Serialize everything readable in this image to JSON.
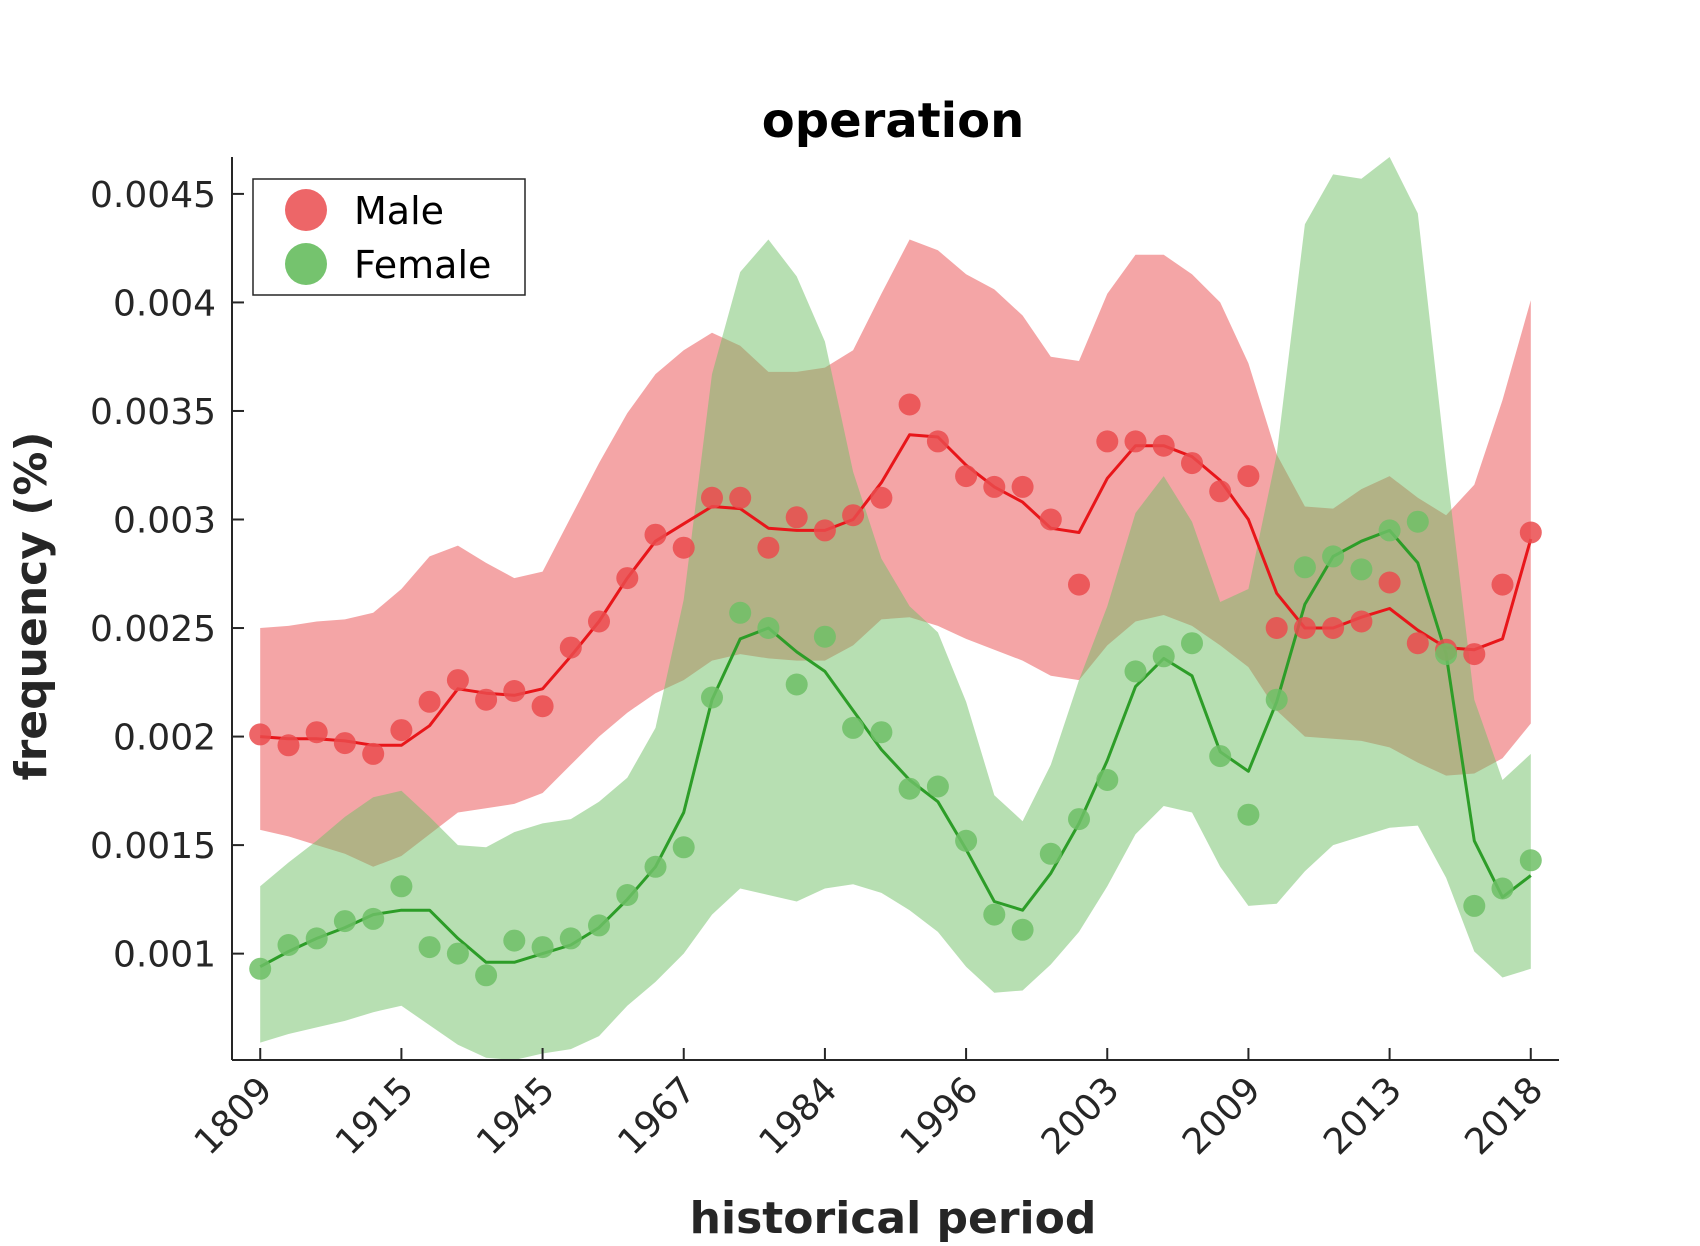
{
  "chart_data": {
    "type": "line",
    "title": "operation",
    "xlabel": "historical period",
    "ylabel": "frequency (%)",
    "categories": [
      "1809",
      "1915",
      "1945",
      "1967",
      "1984",
      "1996",
      "2003",
      "2009",
      "2013",
      "2018"
    ],
    "category_positions": [
      0,
      5,
      10,
      15,
      20,
      25,
      30,
      35,
      40,
      45
    ],
    "x_index_range": [
      -1,
      46
    ],
    "ylim": [
      0.00051,
      0.00467
    ],
    "yticks": [
      0.001,
      0.0015,
      0.002,
      0.0025,
      0.003,
      0.0035,
      0.004,
      0.0045
    ],
    "ytick_labels": [
      "0.001",
      "0.0015",
      "0.002",
      "0.0025",
      "0.003",
      "0.0035",
      "0.004",
      "0.0045"
    ],
    "legend_position": "top-left",
    "colors": {
      "male": "#e8161a",
      "female": "#2d9d28",
      "male_band": "#ea4b4e",
      "female_band": "#6fc066"
    },
    "series": [
      {
        "name": "Male",
        "key": "male",
        "points": [
          0.00201,
          0.00196,
          0.00202,
          0.00197,
          0.00192,
          0.00203,
          0.00216,
          0.00226,
          0.00217,
          0.00221,
          0.00214,
          0.00241,
          0.00253,
          0.00273,
          0.00293,
          0.00287,
          0.0031,
          0.0031,
          0.00287,
          0.00301,
          0.00295,
          0.00302,
          0.0031,
          0.00353,
          0.00336,
          0.0032,
          0.00315,
          0.00315,
          0.003,
          0.0027,
          0.00336,
          0.00336,
          0.00334,
          0.00326,
          0.00313,
          0.0032,
          0.0025,
          0.0025,
          0.0025,
          0.00253,
          0.00271,
          0.00243,
          0.0024,
          0.00238,
          0.0027,
          0.00294
        ],
        "trend": [
          0.002,
          0.00199,
          0.00199,
          0.00198,
          0.00196,
          0.00196,
          0.00205,
          0.00222,
          0.0022,
          0.00219,
          0.00222,
          0.00237,
          0.00253,
          0.00273,
          0.0029,
          0.00298,
          0.00306,
          0.00305,
          0.00296,
          0.00295,
          0.00295,
          0.003,
          0.00317,
          0.00339,
          0.00338,
          0.00325,
          0.00315,
          0.00308,
          0.00296,
          0.00294,
          0.00319,
          0.00334,
          0.00334,
          0.00329,
          0.00318,
          0.003,
          0.00266,
          0.0025,
          0.0025,
          0.00255,
          0.00259,
          0.00249,
          0.00241,
          0.0024,
          0.00245,
          0.00291
        ],
        "band_upper": [
          0.0025,
          0.00251,
          0.00253,
          0.00254,
          0.00257,
          0.00268,
          0.00283,
          0.00288,
          0.0028,
          0.00273,
          0.00276,
          0.00301,
          0.00326,
          0.00349,
          0.00367,
          0.00378,
          0.00386,
          0.0038,
          0.00368,
          0.00368,
          0.0037,
          0.00378,
          0.00404,
          0.00429,
          0.00424,
          0.00413,
          0.00406,
          0.00394,
          0.00375,
          0.00373,
          0.00404,
          0.00422,
          0.00422,
          0.00413,
          0.004,
          0.00372,
          0.0033,
          0.00306,
          0.00305,
          0.00314,
          0.0032,
          0.0031,
          0.00302,
          0.00316,
          0.00355,
          0.00401
        ],
        "band_lower": [
          0.00157,
          0.00154,
          0.0015,
          0.00146,
          0.0014,
          0.00145,
          0.00155,
          0.00165,
          0.00167,
          0.00169,
          0.00174,
          0.00187,
          0.002,
          0.00211,
          0.0022,
          0.00226,
          0.00235,
          0.00238,
          0.00236,
          0.00235,
          0.00235,
          0.00242,
          0.00254,
          0.00255,
          0.00251,
          0.00245,
          0.0024,
          0.00235,
          0.00228,
          0.00226,
          0.00242,
          0.00253,
          0.00256,
          0.00251,
          0.00242,
          0.00232,
          0.00212,
          0.002,
          0.00199,
          0.00198,
          0.00195,
          0.00188,
          0.00182,
          0.00183,
          0.0019,
          0.00206
        ]
      },
      {
        "name": "Female",
        "key": "female",
        "points": [
          0.00093,
          0.00104,
          0.00107,
          0.00115,
          0.00116,
          0.00131,
          0.00103,
          0.001,
          0.0009,
          0.00106,
          0.00103,
          0.00107,
          0.00113,
          0.00127,
          0.0014,
          0.00149,
          0.00218,
          0.00257,
          0.0025,
          0.00224,
          0.00246,
          0.00204,
          0.00202,
          0.00176,
          0.00177,
          0.00152,
          0.00118,
          0.00111,
          0.00146,
          0.00162,
          0.0018,
          0.0023,
          0.00237,
          0.00243,
          0.00191,
          0.00164,
          0.00217,
          0.00278,
          0.00283,
          0.00277,
          0.00295,
          0.00299,
          0.00238,
          0.00122,
          0.0013,
          0.00143
        ],
        "trend": [
          0.00094,
          0.00101,
          0.00107,
          0.00112,
          0.00118,
          0.0012,
          0.0012,
          0.00107,
          0.00096,
          0.00096,
          0.001,
          0.00104,
          0.00112,
          0.00125,
          0.0014,
          0.00165,
          0.00217,
          0.00245,
          0.0025,
          0.00239,
          0.0023,
          0.00212,
          0.00194,
          0.0018,
          0.0017,
          0.00148,
          0.00124,
          0.0012,
          0.00137,
          0.0016,
          0.00189,
          0.00223,
          0.00236,
          0.00228,
          0.00193,
          0.00184,
          0.00216,
          0.00261,
          0.00283,
          0.0029,
          0.00295,
          0.0028,
          0.00238,
          0.00152,
          0.00126,
          0.00136
        ],
        "band_upper": [
          0.00131,
          0.00142,
          0.00152,
          0.00163,
          0.00172,
          0.00175,
          0.00163,
          0.0015,
          0.00149,
          0.00156,
          0.0016,
          0.00162,
          0.0017,
          0.00181,
          0.00204,
          0.00263,
          0.00367,
          0.00414,
          0.00429,
          0.00412,
          0.00382,
          0.00322,
          0.00282,
          0.0026,
          0.00248,
          0.00216,
          0.00173,
          0.00161,
          0.00187,
          0.00226,
          0.0026,
          0.00303,
          0.0032,
          0.00299,
          0.00262,
          0.00268,
          0.0033,
          0.00436,
          0.00459,
          0.00457,
          0.00467,
          0.00441,
          0.00325,
          0.00217,
          0.0018,
          0.00192
        ],
        "band_lower": [
          0.00059,
          0.00063,
          0.00066,
          0.00069,
          0.00073,
          0.00076,
          0.00067,
          0.00058,
          0.00052,
          0.00051,
          0.00054,
          0.00056,
          0.00062,
          0.00076,
          0.00087,
          0.001,
          0.00118,
          0.0013,
          0.00127,
          0.00124,
          0.0013,
          0.00132,
          0.00128,
          0.0012,
          0.0011,
          0.00094,
          0.00082,
          0.00083,
          0.00095,
          0.0011,
          0.00131,
          0.00155,
          0.00168,
          0.00165,
          0.0014,
          0.00122,
          0.00123,
          0.00138,
          0.0015,
          0.00154,
          0.00158,
          0.00159,
          0.00135,
          0.00101,
          0.00089,
          0.00093
        ]
      }
    ]
  }
}
